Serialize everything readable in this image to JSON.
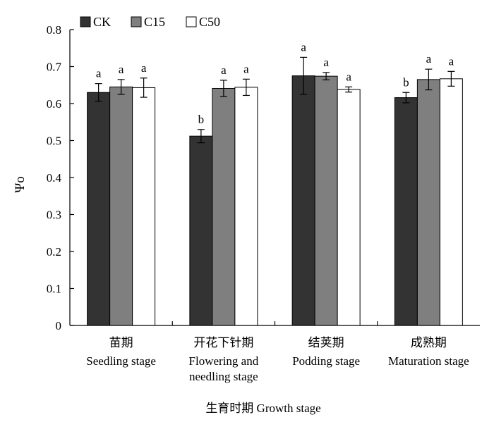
{
  "chart_data": {
    "type": "bar",
    "title": "",
    "xlabel": "生育时期 Growth stage",
    "ylabel": "Ψo",
    "ylim": [
      0,
      0.8
    ],
    "yticks": [
      "0",
      "0.1",
      "0.2",
      "0.3",
      "0.4",
      "0.5",
      "0.6",
      "0.7",
      "0.8"
    ],
    "grid": false,
    "legend_position": "top-left",
    "categories": [
      {
        "zh": "苗期",
        "en": [
          "Seedling stage"
        ]
      },
      {
        "zh": "开花下针期",
        "en": [
          "Flowering and",
          "needling stage"
        ]
      },
      {
        "zh": "结荚期",
        "en": [
          "Podding stage"
        ]
      },
      {
        "zh": "成熟期",
        "en": [
          "Maturation stage"
        ]
      }
    ],
    "series": [
      {
        "name": "CK",
        "color": "#333333",
        "values": [
          0.63,
          0.512,
          0.675,
          0.616
        ],
        "errors": [
          0.024,
          0.018,
          0.05,
          0.014
        ],
        "labels": [
          "a",
          "b",
          "a",
          "b"
        ]
      },
      {
        "name": "C15",
        "color": "#7f7f7f",
        "values": [
          0.645,
          0.641,
          0.674,
          0.665
        ],
        "errors": [
          0.02,
          0.022,
          0.01,
          0.028
        ],
        "labels": [
          "a",
          "a",
          "a",
          "a"
        ]
      },
      {
        "name": "C50",
        "color": "#ffffff",
        "values": [
          0.643,
          0.644,
          0.638,
          0.667
        ],
        "errors": [
          0.026,
          0.022,
          0.007,
          0.02
        ],
        "labels": [
          "a",
          "a",
          "a",
          "a"
        ]
      }
    ]
  }
}
